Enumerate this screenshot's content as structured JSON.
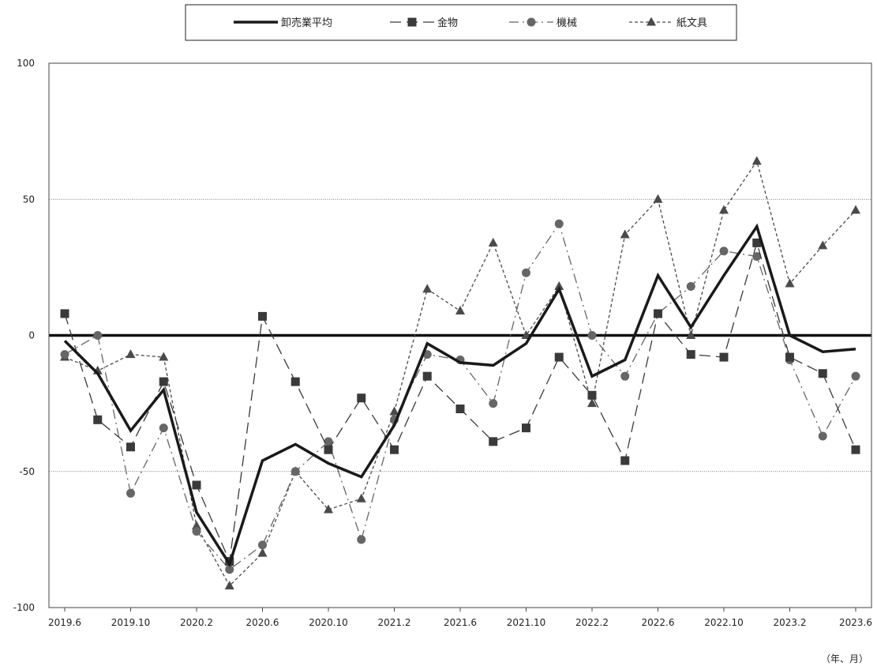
{
  "chart_data": {
    "type": "line",
    "title": "",
    "xlabel": "（年、月）",
    "ylabel": "",
    "ylim": [
      -100,
      100
    ],
    "y_ticks": [
      100,
      50,
      0,
      -50,
      -100
    ],
    "y_tick_labels": [
      "100",
      "50",
      "0",
      "-50",
      "-100"
    ],
    "gridlines": "dotted at -50 and 50; bold line at 0",
    "legend_position": "top-center",
    "x": [
      "2019.6",
      "2019.8",
      "2019.10",
      "2019.12",
      "2020.2",
      "2020.4",
      "2020.6",
      "2020.8",
      "2020.10",
      "2020.12",
      "2021.2",
      "2021.4",
      "2021.6",
      "2021.8",
      "2021.10",
      "2021.12",
      "2022.2",
      "2022.4",
      "2022.6",
      "2022.8",
      "2022.10",
      "2022.12",
      "2023.2",
      "2023.4",
      "2023.6"
    ],
    "x_tick_labels": [
      "2019.6",
      "2019.10",
      "2020.2",
      "2020.6",
      "2020.10",
      "2021.2",
      "2021.6",
      "2021.10",
      "2022.2",
      "2022.6",
      "2022.10",
      "2023.2",
      "2023.6"
    ],
    "series": [
      {
        "name": "卸売業平均",
        "style": "solid-bold",
        "marker": "none",
        "color": "#1a1a1a",
        "values": [
          -2,
          -14,
          -35,
          -20,
          -65,
          -84,
          -46,
          -40,
          -47,
          -52,
          -33,
          -3,
          -10,
          -11,
          -3,
          17,
          -15,
          -9,
          22,
          3,
          22,
          40,
          0,
          -6,
          -5
        ]
      },
      {
        "name": "金物",
        "style": "dash",
        "marker": "square",
        "color": "#3a3a3a",
        "values": [
          8,
          -31,
          -41,
          -17,
          -55,
          -83,
          7,
          -17,
          -42,
          -23,
          -42,
          -15,
          -27,
          -39,
          -34,
          -8,
          -22,
          -46,
          8,
          -7,
          -8,
          34,
          -8,
          -14,
          -42
        ]
      },
      {
        "name": "機械",
        "style": "dash-dot",
        "marker": "circle",
        "color": "#666666",
        "values": [
          -7,
          0,
          -58,
          -34,
          -72,
          -86,
          -77,
          -50,
          -39,
          -75,
          -31,
          -7,
          -9,
          -25,
          23,
          41,
          0,
          -15,
          8,
          18,
          31,
          29,
          -9,
          -37,
          -15
        ]
      },
      {
        "name": "紙文具",
        "style": "short-dash",
        "marker": "triangle",
        "color": "#4a4a4a",
        "values": [
          -8,
          -13,
          -7,
          -8,
          -70,
          -92,
          -80,
          -50,
          -64,
          -60,
          -28,
          17,
          9,
          34,
          0,
          18,
          -25,
          37,
          50,
          0,
          46,
          64,
          19,
          33,
          46
        ]
      }
    ]
  }
}
